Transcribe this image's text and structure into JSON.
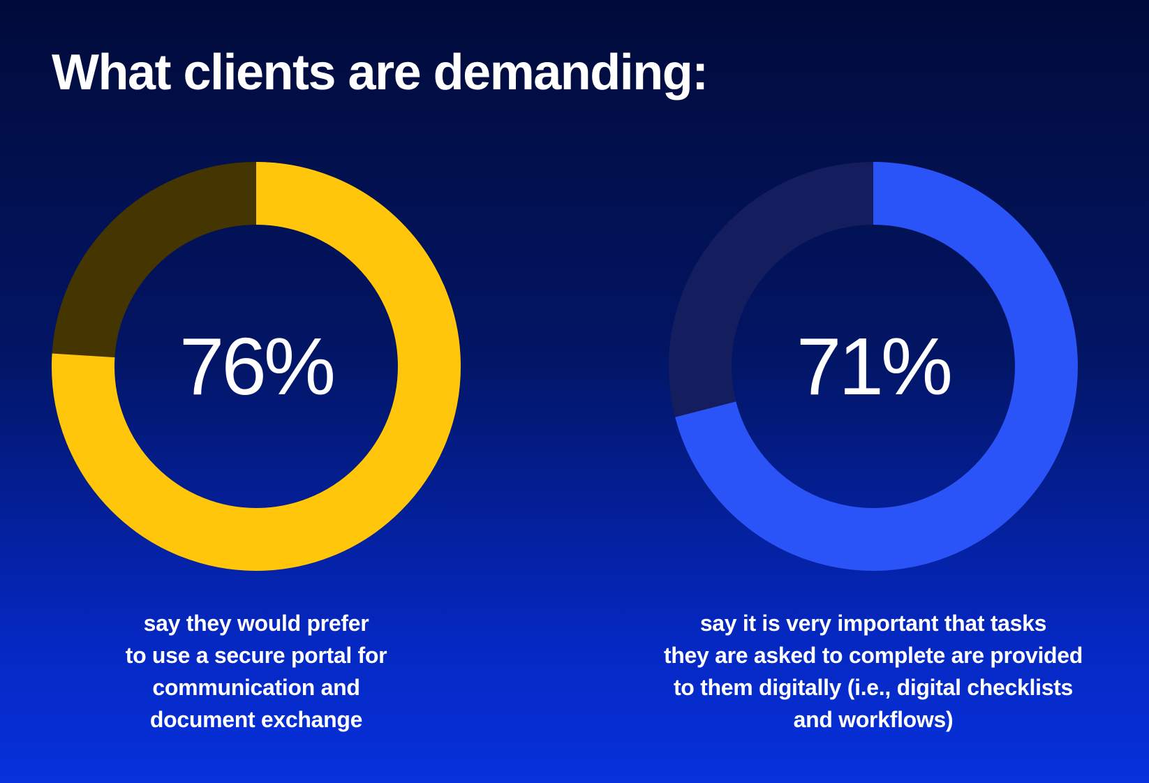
{
  "header": {
    "title": "What clients are demanding:"
  },
  "chart_data": [
    {
      "type": "pie",
      "variant": "donut",
      "value": 76,
      "label": "76%",
      "caption_lines": [
        "say they would prefer",
        "to use a secure portal for",
        "communication and",
        "document exchange"
      ],
      "colors": {
        "fill": "#ffc60b",
        "track": "#453500"
      }
    },
    {
      "type": "pie",
      "variant": "donut",
      "value": 71,
      "label": "71%",
      "caption_lines": [
        "say it is very important that tasks",
        "they are asked to complete are provided",
        "to them digitally (i.e., digital checklists",
        "and workflows)"
      ],
      "colors": {
        "fill": "#2a54f7",
        "track": "#141d5e"
      }
    }
  ]
}
